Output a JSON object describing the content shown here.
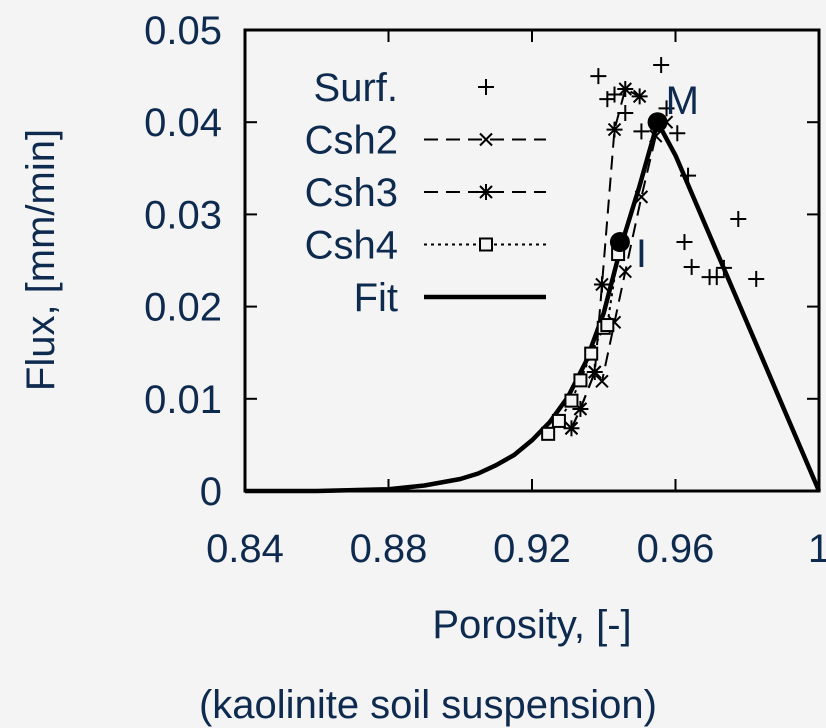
{
  "chart_data": {
    "type": "scatter",
    "xlabel": "Porosity, [-]",
    "ylabel": "Flux, [mm/min]",
    "caption": "(kaolinite soil suspension)",
    "xlim": [
      0.84,
      1.0
    ],
    "ylim": [
      0,
      0.05
    ],
    "xticks": [
      0.84,
      0.88,
      0.92,
      0.96,
      1.0
    ],
    "xtick_labels": [
      "0.84",
      "0.88",
      "0.92",
      "0.96",
      "1"
    ],
    "yticks": [
      0,
      0.01,
      0.02,
      0.03,
      0.04,
      0.05
    ],
    "ytick_labels": [
      "0",
      "0.01",
      "0.02",
      "0.03",
      "0.04",
      "0.05"
    ],
    "grid": false,
    "legend_position": "top-left",
    "colors": {
      "text": "#0e2a4e",
      "marks": "#000000",
      "background": "#f4f4f4"
    },
    "series": [
      {
        "name": "Surf.",
        "marker": "plus",
        "line": "none",
        "points": [
          [
            0.9385,
            0.045
          ],
          [
            0.941,
            0.0425
          ],
          [
            0.943,
            0.043
          ],
          [
            0.946,
            0.041
          ],
          [
            0.9505,
            0.039
          ],
          [
            0.9575,
            0.0415
          ],
          [
            0.956,
            0.0462
          ],
          [
            0.9605,
            0.0388
          ],
          [
            0.9635,
            0.0342
          ],
          [
            0.9625,
            0.027
          ],
          [
            0.9645,
            0.0243
          ],
          [
            0.9695,
            0.0232
          ],
          [
            0.9715,
            0.0232
          ],
          [
            0.9735,
            0.0242
          ],
          [
            0.9775,
            0.0295
          ],
          [
            0.9825,
            0.023
          ]
        ]
      },
      {
        "name": "Csh2",
        "marker": "x",
        "line": "dashed",
        "points": [
          [
            0.931,
            0.0068
          ],
          [
            0.9335,
            0.0089
          ],
          [
            0.9375,
            0.0129
          ],
          [
            0.9395,
            0.0119
          ],
          [
            0.943,
            0.0183
          ],
          [
            0.946,
            0.0238
          ],
          [
            0.9505,
            0.0319
          ],
          [
            0.9545,
            0.0385
          ],
          [
            0.9575,
            0.04
          ]
        ]
      },
      {
        "name": "Csh3",
        "marker": "star",
        "line": "dashed",
        "points": [
          [
            0.931,
            0.0068
          ],
          [
            0.9335,
            0.0089
          ],
          [
            0.9375,
            0.0129
          ],
          [
            0.9395,
            0.0224
          ],
          [
            0.943,
            0.0392
          ],
          [
            0.946,
            0.0436
          ],
          [
            0.95,
            0.0428
          ]
        ]
      },
      {
        "name": "Csh4",
        "marker": "square",
        "line": "dotted",
        "points": [
          [
            0.9245,
            0.0062
          ],
          [
            0.9275,
            0.0076
          ],
          [
            0.931,
            0.0098
          ],
          [
            0.9335,
            0.012
          ],
          [
            0.9365,
            0.0149
          ],
          [
            0.94,
            0.0177
          ],
          [
            0.941,
            0.018
          ],
          [
            0.944,
            0.0257
          ]
        ]
      },
      {
        "name": "Fit",
        "marker": "none",
        "line": "solid",
        "points": [
          [
            0.84,
            0.0
          ],
          [
            0.86,
            0.0
          ],
          [
            0.87,
            0.0001
          ],
          [
            0.88,
            0.0002
          ],
          [
            0.89,
            0.0006
          ],
          [
            0.9,
            0.0013
          ],
          [
            0.905,
            0.0019
          ],
          [
            0.91,
            0.0028
          ],
          [
            0.915,
            0.0039
          ],
          [
            0.92,
            0.0055
          ],
          [
            0.925,
            0.0075
          ],
          [
            0.93,
            0.0102
          ],
          [
            0.935,
            0.014
          ],
          [
            0.94,
            0.0193
          ],
          [
            0.945,
            0.0268
          ],
          [
            0.95,
            0.0331
          ],
          [
            0.955,
            0.04
          ],
          [
            0.96,
            0.0364
          ],
          [
            0.97,
            0.0273
          ],
          [
            0.98,
            0.0182
          ],
          [
            0.99,
            0.0091
          ],
          [
            1.0,
            0.0
          ]
        ]
      }
    ],
    "annotations": [
      {
        "label": "M",
        "x": 0.955,
        "y": 0.04
      },
      {
        "label": "I",
        "x": 0.9445,
        "y": 0.027
      }
    ]
  }
}
